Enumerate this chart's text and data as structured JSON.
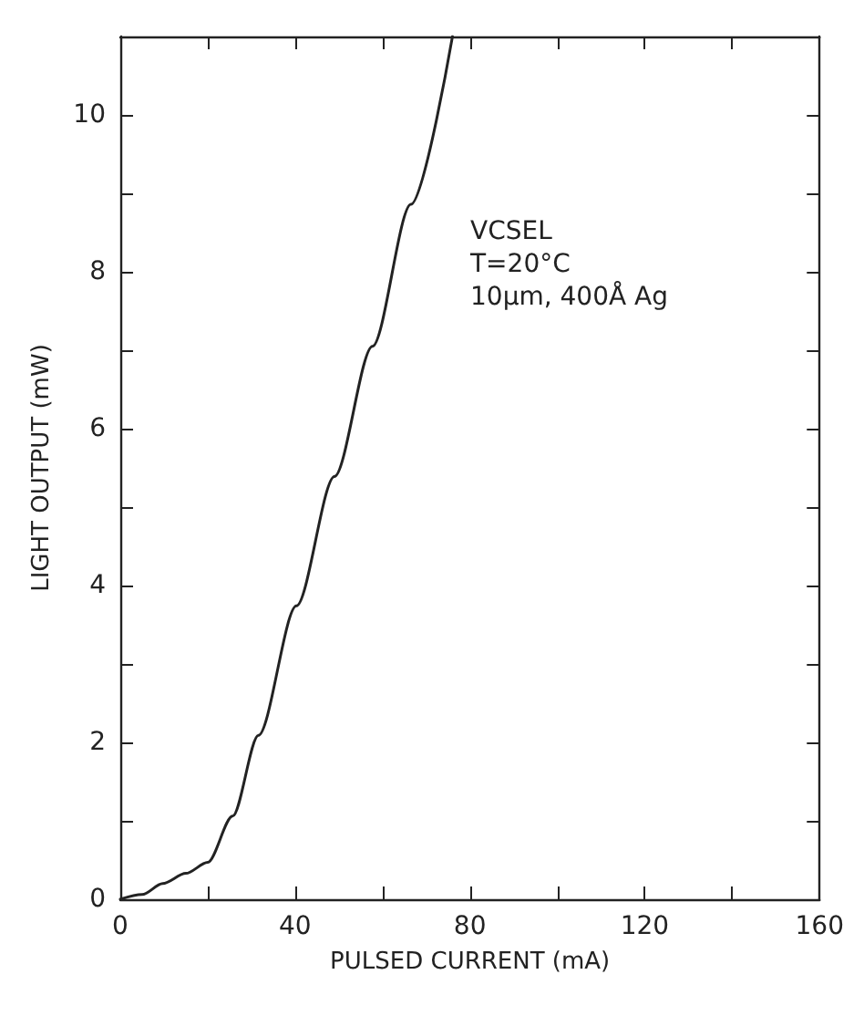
{
  "chart_data": {
    "type": "line",
    "xlabel": "PULSED CURRENT (mA)",
    "ylabel": "LIGHT OUTPUT (mW)",
    "annotations": [
      "VCSEL\nT=20°C\n10μm, 400Å Ag"
    ],
    "x": [
      0,
      5,
      9.7,
      15,
      20,
      25.7,
      31.6,
      40.3,
      49,
      57.7,
      66.5,
      76
    ],
    "series": [
      {
        "color": "#222222",
        "values": [
          0,
          0.06,
          0.2,
          0.33,
          0.47,
          1.06,
          2.09,
          3.74,
          5.39,
          7.05,
          8.86,
          11.0
        ]
      }
    ],
    "xlim": [
      0,
      160
    ],
    "xticks": [
      0,
      {
        "value": 20,
        "label": null
      },
      40,
      {
        "value": 60,
        "label": null
      },
      80,
      {
        "value": 100,
        "label": null
      },
      120,
      {
        "value": 140,
        "label": null
      },
      160
    ],
    "ylim": [
      0,
      11
    ],
    "yticks": [
      0,
      {
        "value": 1,
        "label": null
      },
      2,
      {
        "value": 3,
        "label": null
      },
      4,
      {
        "value": 5,
        "label": null
      },
      6,
      {
        "value": 7,
        "label": null
      },
      8,
      {
        "value": 9,
        "label": null
      },
      10
    ],
    "grid": false,
    "marker": "none",
    "line_style": "solid"
  }
}
